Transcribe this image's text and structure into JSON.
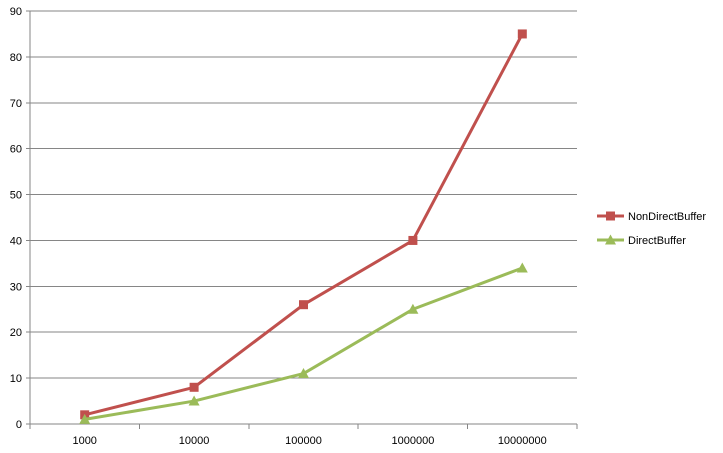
{
  "chart_data": {
    "type": "line",
    "categories": [
      "1000",
      "10000",
      "100000",
      "1000000",
      "10000000"
    ],
    "series": [
      {
        "name": "NonDirectBuffer",
        "values": [
          2,
          8,
          26,
          40,
          85
        ],
        "color": "#c0504d",
        "marker": "square"
      },
      {
        "name": "DirectBuffer",
        "values": [
          1,
          5,
          11,
          25,
          34
        ],
        "color": "#9bbb59",
        "marker": "triangle"
      }
    ],
    "ylim": [
      0,
      90
    ],
    "yticks": [
      0,
      10,
      20,
      30,
      40,
      50,
      60,
      70,
      80,
      90
    ],
    "grid": true,
    "legend_position": "right"
  }
}
